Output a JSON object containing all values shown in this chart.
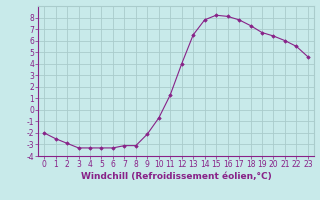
{
  "xlabel": "Windchill (Refroidissement éolien,°C)",
  "x": [
    0,
    1,
    2,
    3,
    4,
    5,
    6,
    7,
    8,
    9,
    10,
    11,
    12,
    13,
    14,
    15,
    16,
    17,
    18,
    19,
    20,
    21,
    22,
    23
  ],
  "y": [
    -2.0,
    -2.5,
    -2.9,
    -3.3,
    -3.3,
    -3.3,
    -3.3,
    -3.1,
    -3.1,
    -2.1,
    -0.7,
    1.3,
    4.0,
    6.5,
    7.8,
    8.2,
    8.1,
    7.8,
    7.3,
    6.7,
    6.4,
    6.0,
    5.5,
    4.6
  ],
  "line_color": "#882288",
  "marker": "D",
  "marker_size": 1.8,
  "bg_color": "#c8eaea",
  "grid_color": "#aacccc",
  "ylim": [
    -4,
    9
  ],
  "xlim": [
    -0.5,
    23.5
  ],
  "yticks": [
    -4,
    -3,
    -2,
    -1,
    0,
    1,
    2,
    3,
    4,
    5,
    6,
    7,
    8
  ],
  "xticks": [
    0,
    1,
    2,
    3,
    4,
    5,
    6,
    7,
    8,
    9,
    10,
    11,
    12,
    13,
    14,
    15,
    16,
    17,
    18,
    19,
    20,
    21,
    22,
    23
  ],
  "tick_fontsize": 5.5,
  "label_fontsize": 6.5
}
